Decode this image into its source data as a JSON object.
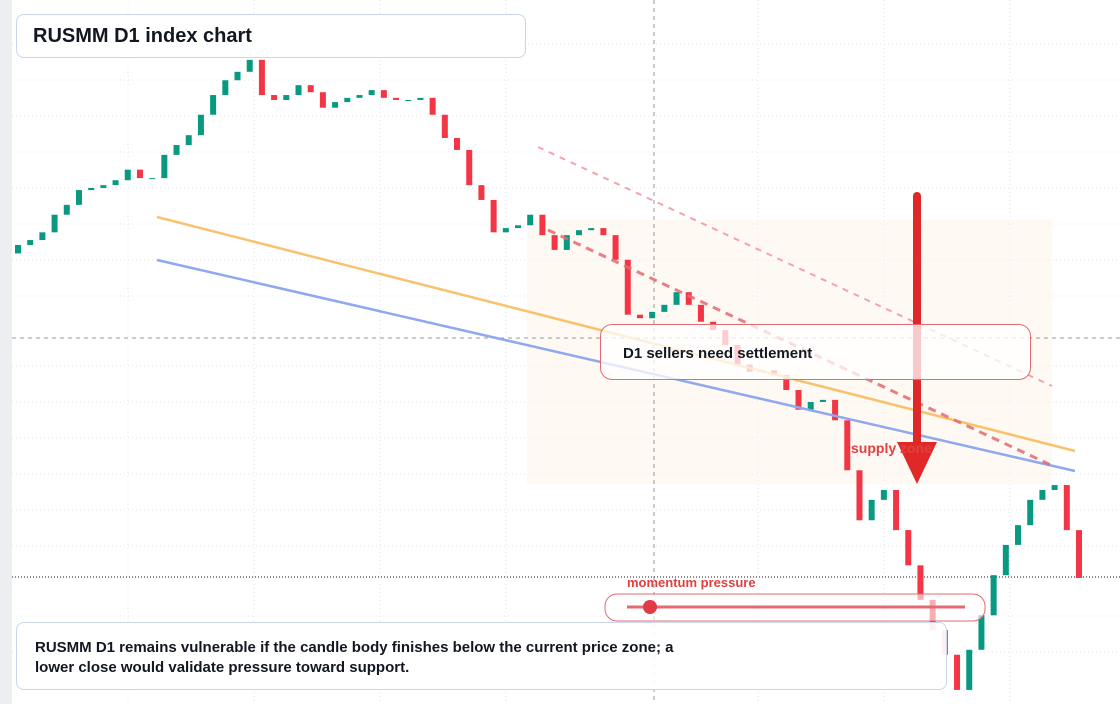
{
  "chart_data": {
    "type": "candlestick",
    "title": "RUSMM D1 index chart",
    "open": [
      64.0,
      65.2,
      65.9,
      67.0,
      69.5,
      70.9,
      73.0,
      73.3,
      73.7,
      74.4,
      75.9,
      74.7,
      74.7,
      78.0,
      79.4,
      80.8,
      83.7,
      86.5,
      88.6,
      89.8,
      91.5,
      86.5,
      85.8,
      86.5,
      87.9,
      86.9,
      84.7,
      85.5,
      86.1,
      86.5,
      87.2,
      86.1,
      85.8,
      85.8,
      86.1,
      83.7,
      80.4,
      78.7,
      73.7,
      71.6,
      67.0,
      67.6,
      68.0,
      69.5,
      66.6,
      64.5,
      66.6,
      67.3,
      67.6,
      66.6,
      63.1,
      55.3,
      54.8,
      55.7,
      56.7,
      58.5,
      56.7,
      54.3,
      53.1,
      51.0,
      48.2,
      47.2,
      47.4,
      46.7,
      44.6,
      41.8,
      42.9,
      43.2,
      40.3,
      33.2,
      26.1,
      29.0,
      30.4,
      24.7,
      19.7,
      14.8,
      10.5,
      7.0,
      2.0,
      7.7,
      12.6,
      18.3,
      22.6,
      25.4,
      29.0,
      30.4,
      31.1,
      24.7
    ],
    "close": [
      65.2,
      65.9,
      67.0,
      69.5,
      70.9,
      73.0,
      73.3,
      73.7,
      74.4,
      75.9,
      74.7,
      74.7,
      78.0,
      79.4,
      80.8,
      83.7,
      86.5,
      88.6,
      89.8,
      91.5,
      86.5,
      85.8,
      86.5,
      87.9,
      86.9,
      84.7,
      85.5,
      86.1,
      86.5,
      87.2,
      86.1,
      85.8,
      85.8,
      86.1,
      83.7,
      80.4,
      78.7,
      73.7,
      71.6,
      67.0,
      67.6,
      68.0,
      69.5,
      66.6,
      64.5,
      66.6,
      67.3,
      67.6,
      66.6,
      63.1,
      55.3,
      54.8,
      55.7,
      56.7,
      58.5,
      56.7,
      54.3,
      53.1,
      51.0,
      48.2,
      47.2,
      47.4,
      46.7,
      44.6,
      41.8,
      42.9,
      43.2,
      40.3,
      33.2,
      26.1,
      29.0,
      30.4,
      24.7,
      19.7,
      14.8,
      10.5,
      7.0,
      2.0,
      7.7,
      12.6,
      18.3,
      22.6,
      25.4,
      29.0,
      30.4,
      31.1,
      24.7,
      17.9
    ],
    "ylim": [
      0,
      100
    ],
    "up_color": "#089981",
    "down_color": "#f23645",
    "annotations": {
      "settlement": "D1 sellers need settlement",
      "supply": "supply zone",
      "momentum": "momentum pressure",
      "note": "RUSMM D1 remains vulnerable if the candle body finishes below the current price zone; a lower close would validate pressure toward support."
    }
  }
}
